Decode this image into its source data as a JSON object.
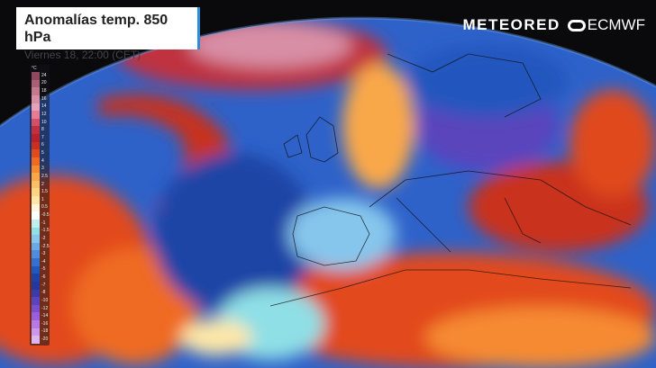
{
  "header": {
    "title": "Anomalías temp. 850 hPa",
    "subtitle": "Viernes 18, 22:00 (CET)"
  },
  "branding": {
    "meteored": "METEORED",
    "ecmwf": "ECMWF",
    "ecmwf_icon": "ecmwf-logo-icon"
  },
  "legend": {
    "unit": "°C",
    "items": [
      {
        "label": "24",
        "color": "#8e4a5c"
      },
      {
        "label": "20",
        "color": "#a95f74"
      },
      {
        "label": "18",
        "color": "#c27a8e"
      },
      {
        "label": "16",
        "color": "#d88fa6"
      },
      {
        "label": "14",
        "color": "#e6a2b8"
      },
      {
        "label": "12",
        "color": "#e57b94"
      },
      {
        "label": "10",
        "color": "#d35067"
      },
      {
        "label": "8",
        "color": "#c03040"
      },
      {
        "label": "7",
        "color": "#b8202c"
      },
      {
        "label": "6",
        "color": "#c9301f"
      },
      {
        "label": "5",
        "color": "#e04a1c"
      },
      {
        "label": "4",
        "color": "#ef6a22"
      },
      {
        "label": "3",
        "color": "#f68a30"
      },
      {
        "label": "2.5",
        "color": "#f9a848"
      },
      {
        "label": "2",
        "color": "#fbc067"
      },
      {
        "label": "1.5",
        "color": "#fcd584"
      },
      {
        "label": "1",
        "color": "#fde7a8"
      },
      {
        "label": "0.5",
        "color": "#fff6dd"
      },
      {
        "label": "-0.5",
        "color": "#ffffff"
      },
      {
        "label": "-1",
        "color": "#bff0ee"
      },
      {
        "label": "-1.5",
        "color": "#8fdfe6"
      },
      {
        "label": "-2",
        "color": "#86c6ec"
      },
      {
        "label": "-2.5",
        "color": "#6aaae6"
      },
      {
        "label": "-3",
        "color": "#4d8ddd"
      },
      {
        "label": "-4",
        "color": "#3470cf"
      },
      {
        "label": "-5",
        "color": "#2357be"
      },
      {
        "label": "-6",
        "color": "#1b44a6"
      },
      {
        "label": "-7",
        "color": "#24389c"
      },
      {
        "label": "-8",
        "color": "#3a3aa8"
      },
      {
        "label": "-10",
        "color": "#5a44bd"
      },
      {
        "label": "-12",
        "color": "#7a4fce"
      },
      {
        "label": "-14",
        "color": "#9a60dc"
      },
      {
        "label": "-16",
        "color": "#b67ae6"
      },
      {
        "label": "-18",
        "color": "#cc98ec"
      },
      {
        "label": "-20",
        "color": "#dcb6ef"
      }
    ]
  }
}
